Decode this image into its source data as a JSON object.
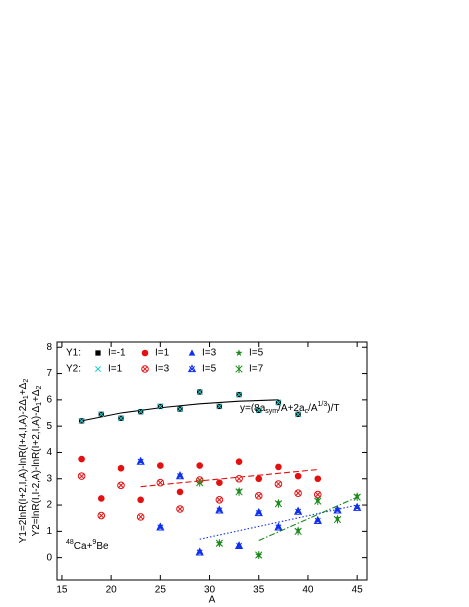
{
  "chart_data": {
    "type": "scatter",
    "xlabel": "A",
    "ylabel": [
      [
        {
          "text": "Y1=2lnR(I+2,I,A)-lnR(I+4,I,A)-2Δ"
        },
        {
          "text": "1",
          "sub": true
        },
        {
          "text": "+Δ"
        },
        {
          "text": "2",
          "sub": true
        }
      ],
      [
        {
          "text": "Y2=lnR(I,I-2,A)-lnR(I+2,I,A)-Δ"
        },
        {
          "text": "1",
          "sub": true
        },
        {
          "text": "+Δ"
        },
        {
          "text": "2",
          "sub": true
        }
      ]
    ],
    "annotations": [
      [
        {
          "text": "y=(8a"
        },
        {
          "text": "sym",
          "sub": true
        },
        {
          "text": "/A+2a"
        },
        {
          "text": "c",
          "sub": true
        },
        {
          "text": "/A"
        },
        {
          "text": "1/3",
          "sup": true
        },
        {
          "text": ")/T"
        }
      ],
      [
        {
          "text": "48",
          "sup": true
        },
        {
          "text": "Ca+"
        },
        {
          "text": "9",
          "sup": true
        },
        {
          "text": "Be"
        }
      ]
    ],
    "xlim": [
      14.5,
      46
    ],
    "xticks": [
      15,
      20,
      25,
      30,
      35,
      40,
      45
    ],
    "ylim": [
      -0.85,
      8.2
    ],
    "yticks": [
      0,
      1,
      2,
      3,
      4,
      5,
      6,
      7,
      8
    ],
    "series_groups": [
      {
        "label": "Y1:",
        "series": [
          {
            "name": "I=-1",
            "color": "#000000",
            "marker": "square",
            "x": [
              17,
              19,
              21,
              23,
              25,
              27,
              29,
              31,
              33,
              35,
              37,
              39
            ],
            "values": [
              5.2,
              5.45,
              5.3,
              5.55,
              5.75,
              5.65,
              6.3,
              5.75,
              6.2,
              5.6,
              5.9,
              5.45
            ]
          },
          {
            "name": "I=1",
            "color": "#e41010",
            "marker": "circle",
            "x": [
              17,
              19,
              21,
              23,
              25,
              27,
              29,
              31,
              33,
              35,
              37,
              39,
              41
            ],
            "values": [
              3.75,
              2.25,
              3.4,
              2.2,
              3.5,
              2.5,
              3.5,
              2.85,
              3.65,
              3.0,
              3.45,
              3.1,
              3.0
            ]
          },
          {
            "name": "I=3",
            "color": "#1030f0",
            "marker": "triangle",
            "x": [
              23,
              25,
              27,
              29,
              31,
              33,
              35,
              37,
              39,
              41,
              43,
              45
            ],
            "values": [
              3.7,
              1.2,
              3.15,
              0.25,
              1.85,
              0.45,
              1.75,
              1.2,
              1.8,
              1.45,
              1.85,
              1.95
            ]
          },
          {
            "name": "I=5",
            "color": "#1a8a1a",
            "marker": "star",
            "x": [
              29,
              31,
              33,
              35,
              37,
              39,
              41,
              43,
              45
            ],
            "values": [
              2.9,
              0.55,
              2.55,
              0.1,
              2.1,
              1.05,
              2.2,
              1.5,
              2.35
            ]
          }
        ]
      },
      {
        "label": "Y2:",
        "series": [
          {
            "name": "I=1",
            "color": "#22cccc",
            "marker": "x",
            "x": [
              17,
              19,
              21,
              23,
              25,
              27,
              29,
              31,
              33,
              35,
              37,
              39
            ],
            "values": [
              5.2,
              5.45,
              5.3,
              5.55,
              5.75,
              5.65,
              6.3,
              5.75,
              6.2,
              5.6,
              5.9,
              5.45
            ]
          },
          {
            "name": "I=3",
            "color": "#e41010",
            "marker": "circle-x",
            "x": [
              17,
              19,
              21,
              23,
              25,
              27,
              29,
              31,
              33,
              35,
              37,
              39,
              41
            ],
            "values": [
              3.1,
              1.6,
              2.75,
              1.55,
              2.85,
              1.85,
              2.95,
              2.2,
              3.0,
              2.35,
              2.8,
              2.45,
              2.4
            ]
          },
          {
            "name": "I=5",
            "color": "#1030f0",
            "marker": "triangle-x",
            "x": [
              23,
              25,
              27,
              29,
              31,
              33,
              35,
              37,
              39,
              41,
              43,
              45
            ],
            "values": [
              3.65,
              1.15,
              3.1,
              0.2,
              1.8,
              0.45,
              1.7,
              1.15,
              1.75,
              1.4,
              1.8,
              1.9
            ]
          },
          {
            "name": "I=7",
            "color": "#1a8a1a",
            "marker": "asterisk",
            "x": [
              29,
              31,
              33,
              35,
              37,
              39,
              41,
              43,
              45
            ],
            "values": [
              2.85,
              0.55,
              2.5,
              0.1,
              2.05,
              1.0,
              2.15,
              1.45,
              2.3
            ]
          }
        ]
      }
    ],
    "fits": [
      {
        "color": "#000000",
        "dash": "solid",
        "x": [
          17,
          21,
          25,
          29,
          33,
          37
        ],
        "values": [
          5.2,
          5.5,
          5.7,
          5.85,
          5.95,
          6.0
        ]
      },
      {
        "color": "#e41010",
        "dash": "dashed",
        "x": [
          23,
          41
        ],
        "values": [
          2.7,
          3.35
        ]
      },
      {
        "color": "#1030f0",
        "dash": "dotted",
        "x": [
          29,
          45
        ],
        "values": [
          0.7,
          2.0
        ]
      },
      {
        "color": "#1a8a1a",
        "dash": "dashdot",
        "x": [
          35,
          45
        ],
        "values": [
          0.65,
          2.3
        ]
      }
    ]
  }
}
